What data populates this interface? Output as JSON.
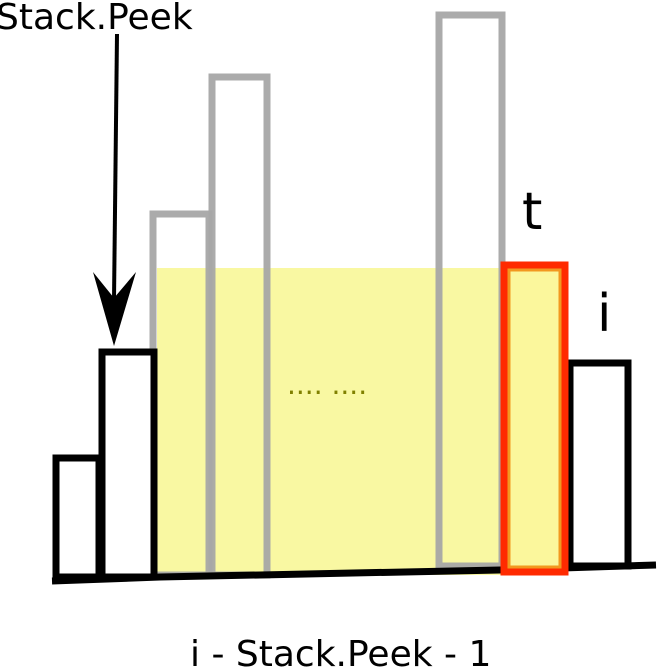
{
  "labels": {
    "stack_peek": "Stack.Peek",
    "t": "t",
    "i": "i",
    "dots": ".... ....",
    "formula": "i - Stack.Peek - 1"
  },
  "colors": {
    "stroke_black": "#000000",
    "stroke_gray": "#a6a6a6",
    "highlight_fill": "#f7f57a",
    "t_stroke": "#ff2a00",
    "t_fill": "#fbf79c",
    "dots_color": "#808000"
  }
}
